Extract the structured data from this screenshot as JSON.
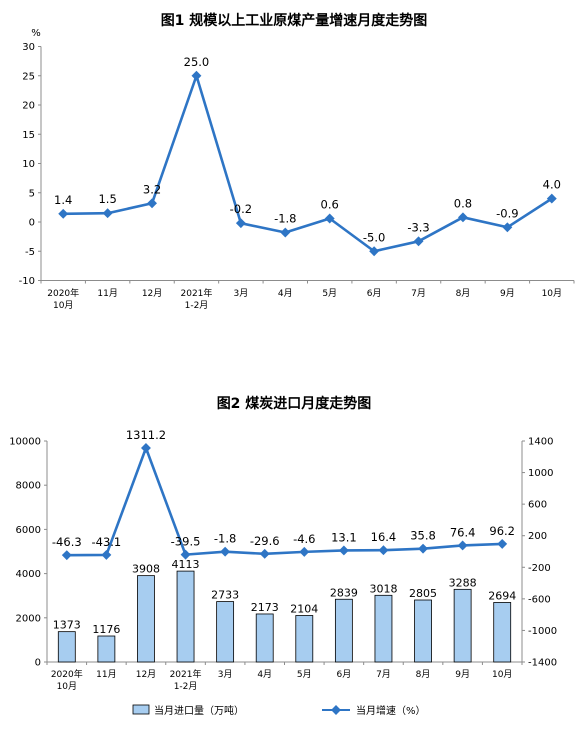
{
  "chart_data": [
    {
      "type": "line",
      "title": "图1  规模以上工业原煤产量增速月度走势图",
      "ylabel": "%",
      "ylim": [
        -10,
        30
      ],
      "yticks": [
        -10,
        -5,
        0,
        5,
        10,
        15,
        20,
        25,
        30
      ],
      "categories": [
        [
          "2020年",
          "10月"
        ],
        [
          "11月"
        ],
        [
          "12月"
        ],
        [
          "2021年",
          "1-2月"
        ],
        [
          "3月"
        ],
        [
          "4月"
        ],
        [
          "5月"
        ],
        [
          "6月"
        ],
        [
          "7月"
        ],
        [
          "8月"
        ],
        [
          "9月"
        ],
        [
          "10月"
        ]
      ],
      "values": [
        1.4,
        1.5,
        3.2,
        25.0,
        -0.2,
        -1.8,
        0.6,
        -5.0,
        -3.3,
        0.8,
        -0.9,
        4.0
      ],
      "labels": [
        "1.4",
        "1.5",
        "3.2",
        "25.0",
        "-0.2",
        "-1.8",
        "0.6",
        "-5.0",
        "-3.3",
        "0.8",
        "-0.9",
        "4.0"
      ],
      "color": "#2e75c5",
      "grid": false
    },
    {
      "type": "bar+line",
      "title": "图2  煤炭进口月度走势图",
      "categories": [
        [
          "2020年",
          "10月"
        ],
        [
          "11月"
        ],
        [
          "12月"
        ],
        [
          "2021年",
          "1-2月"
        ],
        [
          "3月"
        ],
        [
          "4月"
        ],
        [
          "5月"
        ],
        [
          "6月"
        ],
        [
          "7月"
        ],
        [
          "8月"
        ],
        [
          "9月"
        ],
        [
          "10月"
        ]
      ],
      "left_axis": {
        "ylim": [
          0,
          10000
        ],
        "ticks": [
          0,
          2000,
          4000,
          6000,
          8000,
          10000
        ]
      },
      "right_axis": {
        "ylim": [
          -1400,
          1400
        ],
        "ticks": [
          -1400,
          -1000,
          -600,
          -200,
          200,
          600,
          1000,
          1400
        ]
      },
      "series": [
        {
          "name": "当月进口量（万吨）",
          "type": "bar",
          "axis": "left",
          "values": [
            1373,
            1176,
            3908,
            4113,
            2733,
            2173,
            2104,
            2839,
            3018,
            2805,
            3288,
            2694
          ],
          "labels": [
            "1373",
            "1176",
            "3908",
            "4113",
            "2733",
            "2173",
            "2104",
            "2839",
            "3018",
            "2805",
            "3288",
            "2694"
          ],
          "color": "#a7cdf0"
        },
        {
          "name": "当月增速（%）",
          "type": "line",
          "axis": "right",
          "values": [
            -46.3,
            -43.1,
            1311.2,
            -39.5,
            -1.8,
            -29.6,
            -4.6,
            13.1,
            16.4,
            35.8,
            76.4,
            96.2
          ],
          "labels": [
            "-46.3",
            "-43.1",
            "1311.2",
            "-39.5",
            "-1.8",
            "-29.6",
            "-4.6",
            "13.1",
            "16.4",
            "35.8",
            "76.4",
            "96.2"
          ],
          "color": "#2e75c5"
        }
      ],
      "legend": "bottom",
      "grid": false
    }
  ]
}
